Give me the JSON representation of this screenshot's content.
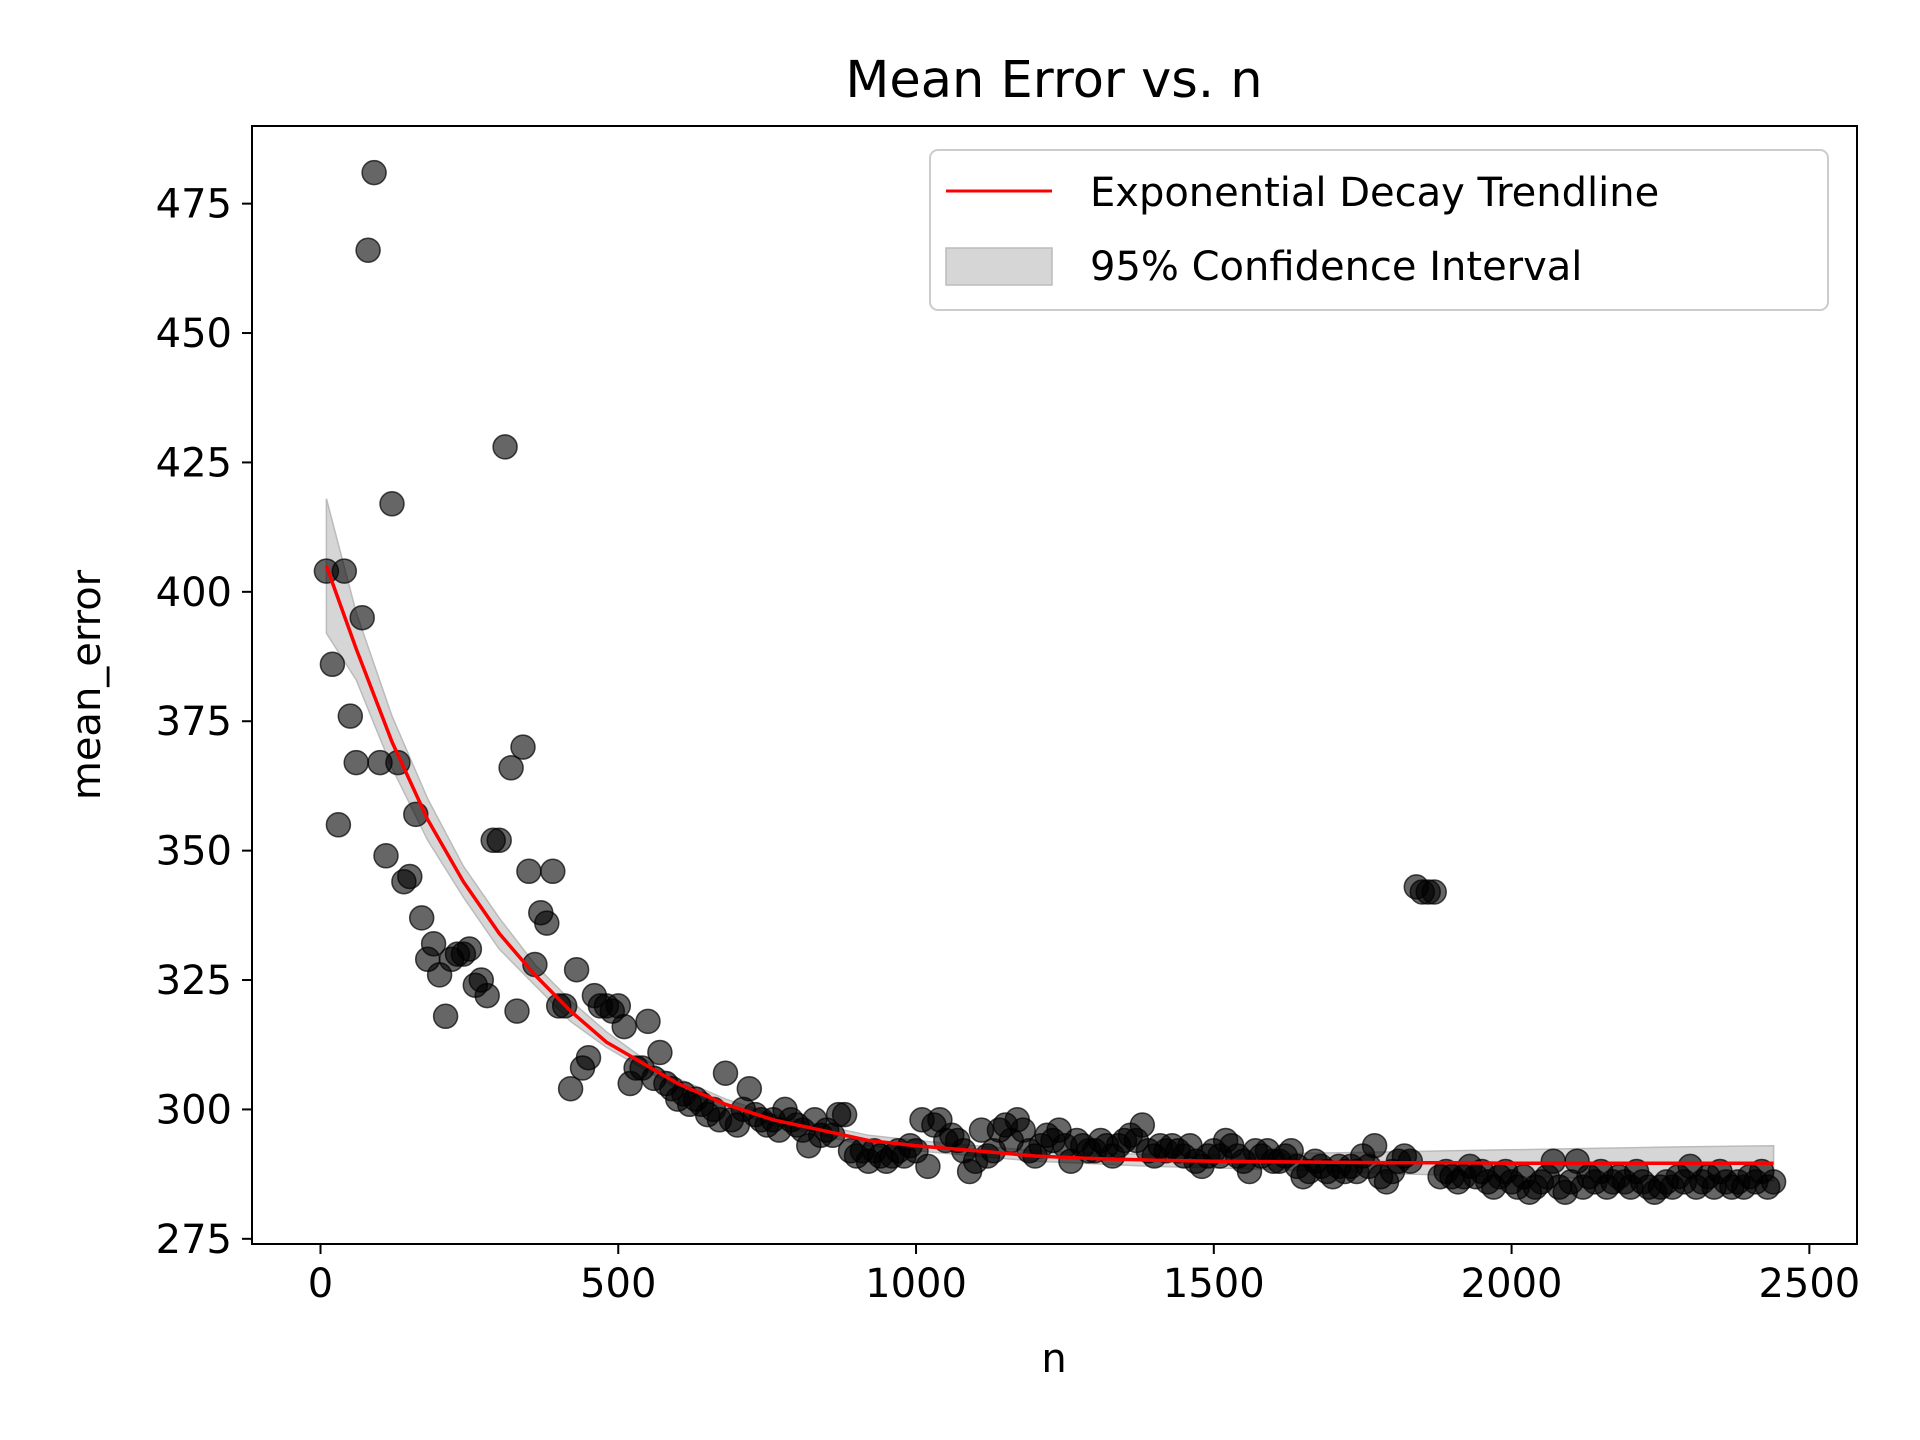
{
  "chart_data": {
    "type": "scatter",
    "title": "Mean Error vs. n",
    "xlabel": "n",
    "ylabel": "mean_error",
    "xlim": [
      -115,
      2580
    ],
    "ylim": [
      274,
      490
    ],
    "x_ticks": [
      0,
      500,
      1000,
      1500,
      2000,
      2500
    ],
    "y_ticks": [
      275,
      300,
      325,
      350,
      375,
      400,
      425,
      450,
      475
    ],
    "grid": false,
    "legend_position": "top-right",
    "legend": [
      {
        "label": "Exponential Decay Trendline",
        "kind": "line",
        "color": "#ff0000"
      },
      {
        "label": "95% Confidence Interval",
        "kind": "band",
        "color": "#cccccc"
      }
    ],
    "series": [
      {
        "type": "scatter",
        "color": "#000000",
        "opacity": 0.6,
        "points": [
          [
            10,
            404
          ],
          [
            20,
            386
          ],
          [
            30,
            355
          ],
          [
            40,
            404
          ],
          [
            50,
            376
          ],
          [
            60,
            367
          ],
          [
            70,
            395
          ],
          [
            80,
            466
          ],
          [
            90,
            481
          ],
          [
            100,
            367
          ],
          [
            110,
            349
          ],
          [
            120,
            417
          ],
          [
            130,
            367
          ],
          [
            140,
            344
          ],
          [
            150,
            345
          ],
          [
            160,
            357
          ],
          [
            170,
            337
          ],
          [
            180,
            329
          ],
          [
            190,
            332
          ],
          [
            200,
            326
          ],
          [
            210,
            318
          ],
          [
            220,
            329
          ],
          [
            230,
            330
          ],
          [
            240,
            330
          ],
          [
            250,
            331
          ],
          [
            260,
            324
          ],
          [
            270,
            325
          ],
          [
            280,
            322
          ],
          [
            290,
            352
          ],
          [
            300,
            352
          ],
          [
            310,
            428
          ],
          [
            320,
            366
          ],
          [
            330,
            319
          ],
          [
            340,
            370
          ],
          [
            350,
            346
          ],
          [
            360,
            328
          ],
          [
            370,
            338
          ],
          [
            380,
            336
          ],
          [
            390,
            346
          ],
          [
            400,
            320
          ],
          [
            410,
            320
          ],
          [
            420,
            304
          ],
          [
            430,
            327
          ],
          [
            440,
            308
          ],
          [
            450,
            310
          ],
          [
            460,
            322
          ],
          [
            470,
            320
          ],
          [
            480,
            320
          ],
          [
            490,
            319
          ],
          [
            500,
            320
          ],
          [
            510,
            316
          ],
          [
            520,
            305
          ],
          [
            530,
            308
          ],
          [
            540,
            308
          ],
          [
            550,
            317
          ],
          [
            560,
            306
          ],
          [
            570,
            311
          ],
          [
            580,
            305
          ],
          [
            590,
            304
          ],
          [
            600,
            302
          ],
          [
            610,
            303
          ],
          [
            620,
            301
          ],
          [
            630,
            302
          ],
          [
            640,
            301
          ],
          [
            650,
            299
          ],
          [
            660,
            300
          ],
          [
            670,
            298
          ],
          [
            680,
            307
          ],
          [
            690,
            298
          ],
          [
            700,
            297
          ],
          [
            710,
            300
          ],
          [
            720,
            304
          ],
          [
            730,
            299
          ],
          [
            740,
            298
          ],
          [
            750,
            297
          ],
          [
            760,
            298
          ],
          [
            770,
            296
          ],
          [
            780,
            300
          ],
          [
            790,
            298
          ],
          [
            800,
            297
          ],
          [
            810,
            296
          ],
          [
            820,
            293
          ],
          [
            830,
            298
          ],
          [
            840,
            295
          ],
          [
            850,
            296
          ],
          [
            860,
            295
          ],
          [
            870,
            299
          ],
          [
            880,
            299
          ],
          [
            890,
            292
          ],
          [
            900,
            291
          ],
          [
            910,
            292
          ],
          [
            920,
            290
          ],
          [
            930,
            292
          ],
          [
            940,
            291
          ],
          [
            950,
            290
          ],
          [
            960,
            291
          ],
          [
            970,
            292
          ],
          [
            980,
            291
          ],
          [
            990,
            293
          ],
          [
            1000,
            292
          ],
          [
            1010,
            298
          ],
          [
            1020,
            289
          ],
          [
            1030,
            297
          ],
          [
            1040,
            298
          ],
          [
            1050,
            294
          ],
          [
            1060,
            295
          ],
          [
            1070,
            294
          ],
          [
            1080,
            292
          ],
          [
            1090,
            288
          ],
          [
            1100,
            290
          ],
          [
            1110,
            296
          ],
          [
            1120,
            291
          ],
          [
            1130,
            292
          ],
          [
            1140,
            296
          ],
          [
            1150,
            297
          ],
          [
            1160,
            294
          ],
          [
            1170,
            298
          ],
          [
            1180,
            296
          ],
          [
            1190,
            292
          ],
          [
            1200,
            291
          ],
          [
            1210,
            293
          ],
          [
            1220,
            295
          ],
          [
            1230,
            294
          ],
          [
            1240,
            296
          ],
          [
            1250,
            293
          ],
          [
            1260,
            290
          ],
          [
            1270,
            294
          ],
          [
            1280,
            293
          ],
          [
            1290,
            292
          ],
          [
            1300,
            292
          ],
          [
            1310,
            294
          ],
          [
            1320,
            293
          ],
          [
            1330,
            291
          ],
          [
            1340,
            293
          ],
          [
            1350,
            294
          ],
          [
            1360,
            295
          ],
          [
            1370,
            294
          ],
          [
            1380,
            297
          ],
          [
            1390,
            292
          ],
          [
            1400,
            291
          ],
          [
            1410,
            293
          ],
          [
            1420,
            292
          ],
          [
            1430,
            293
          ],
          [
            1440,
            292
          ],
          [
            1450,
            291
          ],
          [
            1460,
            293
          ],
          [
            1470,
            290
          ],
          [
            1480,
            289
          ],
          [
            1490,
            291
          ],
          [
            1500,
            292
          ],
          [
            1510,
            291
          ],
          [
            1520,
            294
          ],
          [
            1530,
            293
          ],
          [
            1540,
            291
          ],
          [
            1550,
            290
          ],
          [
            1560,
            288
          ],
          [
            1570,
            292
          ],
          [
            1580,
            291
          ],
          [
            1590,
            292
          ],
          [
            1600,
            290
          ],
          [
            1610,
            290
          ],
          [
            1620,
            291
          ],
          [
            1630,
            292
          ],
          [
            1640,
            289
          ],
          [
            1650,
            287
          ],
          [
            1660,
            288
          ],
          [
            1670,
            290
          ],
          [
            1680,
            289
          ],
          [
            1690,
            288
          ],
          [
            1700,
            287
          ],
          [
            1710,
            289
          ],
          [
            1720,
            288
          ],
          [
            1730,
            289
          ],
          [
            1740,
            288
          ],
          [
            1750,
            291
          ],
          [
            1760,
            289
          ],
          [
            1770,
            293
          ],
          [
            1780,
            287
          ],
          [
            1790,
            286
          ],
          [
            1800,
            288
          ],
          [
            1810,
            290
          ],
          [
            1820,
            291
          ],
          [
            1830,
            290
          ],
          [
            1840,
            343
          ],
          [
            1850,
            342
          ],
          [
            1860,
            342
          ],
          [
            1870,
            342
          ],
          [
            1880,
            287
          ],
          [
            1890,
            288
          ],
          [
            1900,
            287
          ],
          [
            1910,
            286
          ],
          [
            1920,
            287
          ],
          [
            1930,
            289
          ],
          [
            1940,
            287
          ],
          [
            1950,
            288
          ],
          [
            1960,
            286
          ],
          [
            1970,
            285
          ],
          [
            1980,
            287
          ],
          [
            1990,
            288
          ],
          [
            2000,
            286
          ],
          [
            2010,
            285
          ],
          [
            2020,
            287
          ],
          [
            2030,
            284
          ],
          [
            2040,
            285
          ],
          [
            2050,
            286
          ],
          [
            2060,
            287
          ],
          [
            2070,
            290
          ],
          [
            2080,
            285
          ],
          [
            2090,
            284
          ],
          [
            2100,
            286
          ],
          [
            2110,
            290
          ],
          [
            2120,
            285
          ],
          [
            2130,
            287
          ],
          [
            2140,
            286
          ],
          [
            2150,
            288
          ],
          [
            2160,
            285
          ],
          [
            2170,
            286
          ],
          [
            2180,
            287
          ],
          [
            2190,
            286
          ],
          [
            2200,
            285
          ],
          [
            2210,
            288
          ],
          [
            2220,
            286
          ],
          [
            2230,
            285
          ],
          [
            2240,
            284
          ],
          [
            2250,
            285
          ],
          [
            2260,
            286
          ],
          [
            2270,
            285
          ],
          [
            2280,
            287
          ],
          [
            2290,
            286
          ],
          [
            2300,
            289
          ],
          [
            2310,
            285
          ],
          [
            2320,
            286
          ],
          [
            2330,
            287
          ],
          [
            2340,
            285
          ],
          [
            2350,
            288
          ],
          [
            2360,
            286
          ],
          [
            2370,
            285
          ],
          [
            2380,
            286
          ],
          [
            2390,
            285
          ],
          [
            2400,
            287
          ],
          [
            2410,
            286
          ],
          [
            2420,
            288
          ],
          [
            2430,
            285
          ],
          [
            2440,
            286
          ]
        ]
      },
      {
        "type": "line",
        "name": "Exponential Decay Trendline",
        "color": "#ff0000",
        "x": [
          10,
          60,
          120,
          180,
          240,
          300,
          360,
          420,
          480,
          540,
          600,
          680,
          760,
          840,
          920,
          1000,
          1100,
          1200,
          1300,
          1400,
          1500,
          1600,
          1700,
          1800,
          1900,
          2000,
          2100,
          2200,
          2300,
          2440
        ],
        "y": [
          405,
          389,
          371,
          356,
          344,
          334,
          326,
          319,
          313,
          309,
          305,
          301,
          298,
          296,
          294,
          293,
          292,
          291,
          290.5,
          290.2,
          290,
          289.9,
          289.8,
          289.7,
          289.7,
          289.6,
          289.6,
          289.6,
          289.6,
          289.6
        ]
      }
    ],
    "confidence_band": {
      "name": "95% Confidence Interval",
      "color": "#cccccc",
      "x": [
        10,
        60,
        120,
        180,
        240,
        300,
        360,
        420,
        480,
        540,
        600,
        680,
        760,
        840,
        920,
        1000,
        1100,
        1200,
        1300,
        1400,
        1500,
        1600,
        1700,
        1800,
        1900,
        2000,
        2100,
        2200,
        2300,
        2440
      ],
      "lower": [
        392,
        383,
        366,
        352,
        341,
        331,
        324,
        317,
        312,
        308,
        304,
        300,
        297,
        295,
        293,
        292,
        291,
        290,
        289.5,
        289,
        288.7,
        288.4,
        288,
        287.6,
        287.3,
        287,
        286.8,
        286.6,
        286.4,
        286.2
      ],
      "upper": [
        418,
        396,
        376,
        360,
        347,
        337,
        328,
        321,
        315,
        310,
        306,
        302,
        299,
        297,
        295,
        294,
        293,
        292,
        291.5,
        291.3,
        291.3,
        291.4,
        291.6,
        291.8,
        292,
        292.2,
        292.4,
        292.6,
        292.8,
        293
      ]
    }
  }
}
